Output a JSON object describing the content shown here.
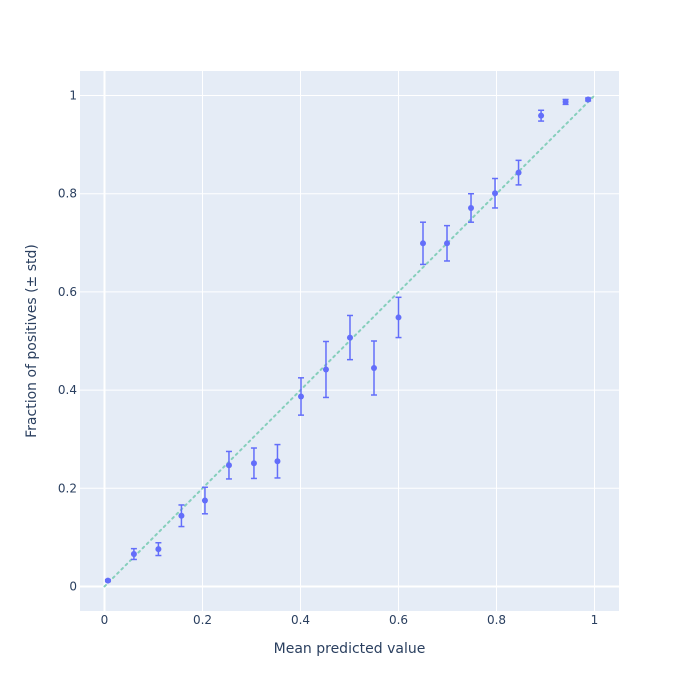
{
  "chart_data": {
    "type": "scatter",
    "title": "",
    "xlabel": "Mean predicted value",
    "ylabel": "Fraction of positives (± std)",
    "xlim": [
      -0.05,
      1.05
    ],
    "ylim": [
      -0.05,
      1.05
    ],
    "x_ticks": [
      0,
      0.2,
      0.4,
      0.6,
      0.8,
      1
    ],
    "x_tick_labels": [
      "0",
      "0.2",
      "0.4",
      "0.6",
      "0.8",
      "1"
    ],
    "y_ticks": [
      0,
      0.2,
      0.4,
      0.6,
      0.8,
      1
    ],
    "y_tick_labels": [
      "0",
      "0.2",
      "0.4",
      "0.6",
      "0.8",
      "1"
    ],
    "grid": true,
    "reference_line": {
      "x": [
        0,
        1
      ],
      "y": [
        0,
        1
      ],
      "style": "dotted",
      "color": "#86cfbc"
    },
    "series": [
      {
        "color": "#636efa",
        "points": [
          {
            "x": 0.007,
            "y": 0.012,
            "std": 0.002
          },
          {
            "x": 0.06,
            "y": 0.066,
            "std": 0.011
          },
          {
            "x": 0.11,
            "y": 0.076,
            "std": 0.013
          },
          {
            "x": 0.157,
            "y": 0.144,
            "std": 0.022
          },
          {
            "x": 0.205,
            "y": 0.175,
            "std": 0.027
          },
          {
            "x": 0.254,
            "y": 0.247,
            "std": 0.028
          },
          {
            "x": 0.305,
            "y": 0.251,
            "std": 0.031
          },
          {
            "x": 0.353,
            "y": 0.255,
            "std": 0.034
          },
          {
            "x": 0.401,
            "y": 0.387,
            "std": 0.038
          },
          {
            "x": 0.452,
            "y": 0.442,
            "std": 0.057
          },
          {
            "x": 0.501,
            "y": 0.507,
            "std": 0.045
          },
          {
            "x": 0.55,
            "y": 0.445,
            "std": 0.055
          },
          {
            "x": 0.6,
            "y": 0.548,
            "std": 0.041
          },
          {
            "x": 0.65,
            "y": 0.699,
            "std": 0.043
          },
          {
            "x": 0.699,
            "y": 0.699,
            "std": 0.036
          },
          {
            "x": 0.748,
            "y": 0.771,
            "std": 0.029
          },
          {
            "x": 0.797,
            "y": 0.801,
            "std": 0.03
          },
          {
            "x": 0.845,
            "y": 0.843,
            "std": 0.025
          },
          {
            "x": 0.891,
            "y": 0.959,
            "std": 0.011
          },
          {
            "x": 0.941,
            "y": 0.987,
            "std": 0.005
          },
          {
            "x": 0.987,
            "y": 0.992,
            "std": 0.003
          }
        ]
      }
    ]
  }
}
